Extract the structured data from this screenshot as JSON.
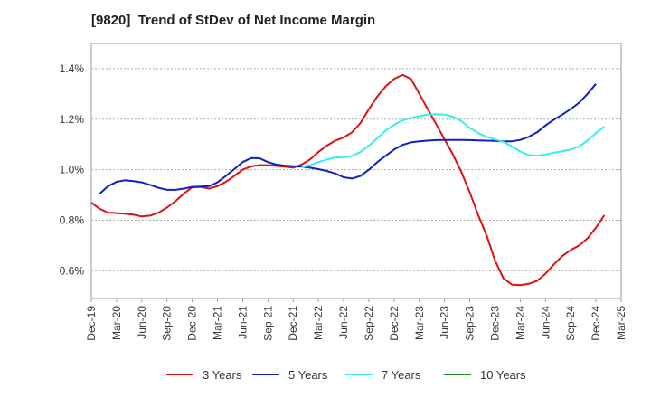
{
  "chart_data": {
    "type": "line",
    "title": "[9820]  Trend of StDev of Net Income Margin",
    "xlabel": "",
    "ylabel": "",
    "x_ticks": [
      "Dec-19",
      "Mar-20",
      "Jun-20",
      "Sep-20",
      "Dec-20",
      "Mar-21",
      "Jun-21",
      "Sep-21",
      "Dec-21",
      "Mar-22",
      "Jun-22",
      "Sep-22",
      "Dec-22",
      "Mar-23",
      "Jun-23",
      "Sep-23",
      "Dec-23",
      "Mar-24",
      "Jun-24",
      "Sep-24",
      "Dec-24",
      "Mar-25"
    ],
    "y_ticks": [
      "0.6%",
      "0.8%",
      "1.0%",
      "1.2%",
      "1.4%"
    ],
    "y_tick_values": [
      0.6,
      0.8,
      1.0,
      1.2,
      1.4
    ],
    "ylim": [
      0.49,
      1.5
    ],
    "grid": "horizontal dashed",
    "legend_position": "bottom",
    "series": [
      {
        "name": "3 Years",
        "color": "#dd1111",
        "points": [
          [
            "Dec-19",
            0.87
          ],
          [
            "Jan-20",
            0.845
          ],
          [
            "Feb-20",
            0.83
          ],
          [
            "Mar-20",
            0.828
          ],
          [
            "Apr-20",
            0.826
          ],
          [
            "May-20",
            0.822
          ],
          [
            "Jun-20",
            0.815
          ],
          [
            "Jul-20",
            0.818
          ],
          [
            "Aug-20",
            0.83
          ],
          [
            "Sep-20",
            0.85
          ],
          [
            "Oct-20",
            0.875
          ],
          [
            "Nov-20",
            0.905
          ],
          [
            "Dec-20",
            0.93
          ],
          [
            "Jan-21",
            0.932
          ],
          [
            "Feb-21",
            0.925
          ],
          [
            "Mar-21",
            0.935
          ],
          [
            "Apr-21",
            0.952
          ],
          [
            "May-21",
            0.975
          ],
          [
            "Jun-21",
            1.0
          ],
          [
            "Jul-21",
            1.013
          ],
          [
            "Aug-21",
            1.018
          ],
          [
            "Sep-21",
            1.018
          ],
          [
            "Oct-21",
            1.015
          ],
          [
            "Nov-21",
            1.012
          ],
          [
            "Dec-21",
            1.008
          ],
          [
            "Jan-22",
            1.02
          ],
          [
            "Feb-22",
            1.04
          ],
          [
            "Mar-22",
            1.07
          ],
          [
            "Apr-22",
            1.095
          ],
          [
            "May-22",
            1.115
          ],
          [
            "Jun-22",
            1.128
          ],
          [
            "Jul-22",
            1.148
          ],
          [
            "Aug-22",
            1.185
          ],
          [
            "Sep-22",
            1.24
          ],
          [
            "Oct-22",
            1.29
          ],
          [
            "Nov-22",
            1.33
          ],
          [
            "Dec-22",
            1.36
          ],
          [
            "Jan-23",
            1.375
          ],
          [
            "Feb-23",
            1.36
          ],
          [
            "Mar-23",
            1.3
          ],
          [
            "Apr-23",
            1.24
          ],
          [
            "May-23",
            1.18
          ],
          [
            "Jun-23",
            1.12
          ],
          [
            "Jul-23",
            1.06
          ],
          [
            "Aug-23",
            0.99
          ],
          [
            "Sep-23",
            0.91
          ],
          [
            "Oct-23",
            0.82
          ],
          [
            "Nov-23",
            0.74
          ],
          [
            "Dec-23",
            0.64
          ],
          [
            "Jan-24",
            0.57
          ],
          [
            "Feb-24",
            0.545
          ],
          [
            "Mar-24",
            0.543
          ],
          [
            "Apr-24",
            0.548
          ],
          [
            "May-24",
            0.56
          ],
          [
            "Jun-24",
            0.588
          ],
          [
            "Jul-24",
            0.625
          ],
          [
            "Aug-24",
            0.658
          ],
          [
            "Sep-24",
            0.682
          ],
          [
            "Oct-24",
            0.7
          ],
          [
            "Nov-24",
            0.728
          ],
          [
            "Dec-24",
            0.77
          ],
          [
            "Jan-25",
            0.82
          ]
        ]
      },
      {
        "name": "5 Years",
        "color": "#1122bb",
        "points": [
          [
            "Jan-20",
            0.905
          ],
          [
            "Feb-20",
            0.935
          ],
          [
            "Mar-20",
            0.952
          ],
          [
            "Apr-20",
            0.958
          ],
          [
            "May-20",
            0.955
          ],
          [
            "Jun-20",
            0.95
          ],
          [
            "Jul-20",
            0.94
          ],
          [
            "Aug-20",
            0.928
          ],
          [
            "Sep-20",
            0.92
          ],
          [
            "Oct-20",
            0.92
          ],
          [
            "Nov-20",
            0.925
          ],
          [
            "Dec-20",
            0.932
          ],
          [
            "Jan-21",
            0.933
          ],
          [
            "Feb-21",
            0.935
          ],
          [
            "Mar-21",
            0.95
          ],
          [
            "Apr-21",
            0.975
          ],
          [
            "May-21",
            1.002
          ],
          [
            "Jun-21",
            1.03
          ],
          [
            "Jul-21",
            1.046
          ],
          [
            "Aug-21",
            1.045
          ],
          [
            "Sep-21",
            1.03
          ],
          [
            "Oct-21",
            1.02
          ],
          [
            "Nov-21",
            1.016
          ],
          [
            "Dec-21",
            1.014
          ],
          [
            "Jan-22",
            1.012
          ],
          [
            "Feb-22",
            1.008
          ],
          [
            "Mar-22",
            1.002
          ],
          [
            "Apr-22",
            0.995
          ],
          [
            "May-22",
            0.985
          ],
          [
            "Jun-22",
            0.97
          ],
          [
            "Jul-22",
            0.965
          ],
          [
            "Aug-22",
            0.975
          ],
          [
            "Sep-22",
            1.0
          ],
          [
            "Oct-22",
            1.03
          ],
          [
            "Nov-22",
            1.055
          ],
          [
            "Dec-22",
            1.08
          ],
          [
            "Jan-23",
            1.098
          ],
          [
            "Feb-23",
            1.108
          ],
          [
            "Mar-23",
            1.112
          ],
          [
            "Apr-23",
            1.115
          ],
          [
            "May-23",
            1.117
          ],
          [
            "Jun-23",
            1.118
          ],
          [
            "Jul-23",
            1.118
          ],
          [
            "Aug-23",
            1.118
          ],
          [
            "Sep-23",
            1.117
          ],
          [
            "Oct-23",
            1.116
          ],
          [
            "Nov-23",
            1.115
          ],
          [
            "Dec-23",
            1.114
          ],
          [
            "Jan-24",
            1.112
          ],
          [
            "Feb-24",
            1.112
          ],
          [
            "Mar-24",
            1.118
          ],
          [
            "Apr-24",
            1.13
          ],
          [
            "May-24",
            1.148
          ],
          [
            "Jun-24",
            1.175
          ],
          [
            "Jul-24",
            1.198
          ],
          [
            "Aug-24",
            1.218
          ],
          [
            "Sep-24",
            1.24
          ],
          [
            "Oct-24",
            1.265
          ],
          [
            "Nov-24",
            1.3
          ],
          [
            "Dec-24",
            1.34
          ]
        ]
      },
      {
        "name": "7 Years",
        "color": "#33eeee",
        "points": [
          [
            "Jan-22",
            1.01
          ],
          [
            "Feb-22",
            1.018
          ],
          [
            "Mar-22",
            1.03
          ],
          [
            "Apr-22",
            1.04
          ],
          [
            "May-22",
            1.048
          ],
          [
            "Jun-22",
            1.05
          ],
          [
            "Jul-22",
            1.055
          ],
          [
            "Aug-22",
            1.07
          ],
          [
            "Sep-22",
            1.095
          ],
          [
            "Oct-22",
            1.125
          ],
          [
            "Nov-22",
            1.155
          ],
          [
            "Dec-22",
            1.178
          ],
          [
            "Jan-23",
            1.195
          ],
          [
            "Feb-23",
            1.205
          ],
          [
            "Mar-23",
            1.212
          ],
          [
            "Apr-23",
            1.218
          ],
          [
            "May-23",
            1.22
          ],
          [
            "Jun-23",
            1.218
          ],
          [
            "Jul-23",
            1.21
          ],
          [
            "Aug-23",
            1.192
          ],
          [
            "Sep-23",
            1.165
          ],
          [
            "Oct-23",
            1.145
          ],
          [
            "Nov-23",
            1.13
          ],
          [
            "Dec-23",
            1.12
          ],
          [
            "Jan-24",
            1.11
          ],
          [
            "Feb-24",
            1.092
          ],
          [
            "Mar-24",
            1.072
          ],
          [
            "Apr-24",
            1.058
          ],
          [
            "May-24",
            1.055
          ],
          [
            "Jun-24",
            1.06
          ],
          [
            "Jul-24",
            1.067
          ],
          [
            "Aug-24",
            1.073
          ],
          [
            "Sep-24",
            1.08
          ],
          [
            "Oct-24",
            1.092
          ],
          [
            "Nov-24",
            1.115
          ],
          [
            "Dec-24",
            1.145
          ],
          [
            "Jan-25",
            1.17
          ]
        ]
      },
      {
        "name": "10 Years",
        "color": "#228822",
        "points": []
      }
    ]
  }
}
